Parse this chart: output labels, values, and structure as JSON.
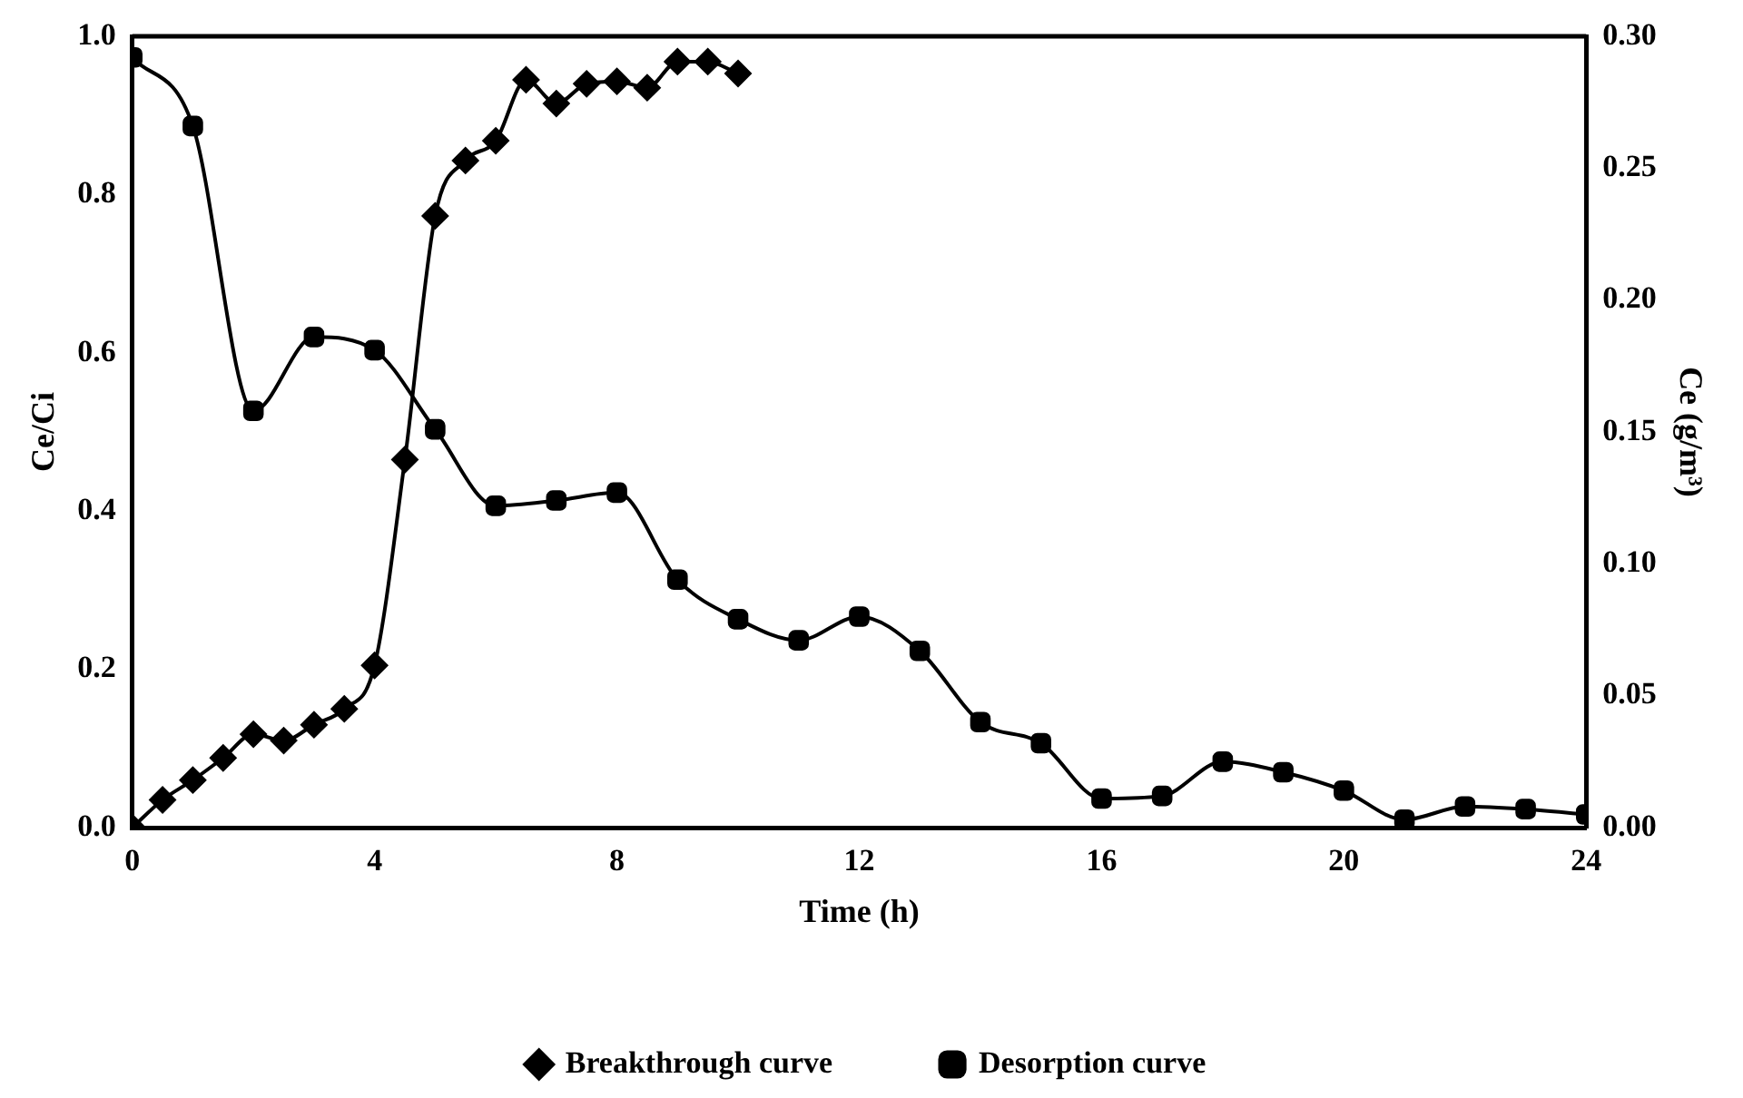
{
  "chart_data": {
    "type": "line",
    "xlabel": "Time (h)",
    "ylabel": "Ce/Ci",
    "y2label": "Ce (g/m³)",
    "xlim": [
      0,
      24
    ],
    "xticks": [
      0,
      4,
      8,
      12,
      16,
      20,
      24
    ],
    "ylim": [
      0,
      1.0
    ],
    "yticks": [
      {
        "value": 0,
        "label": "0.0"
      },
      {
        "value": 0.2,
        "label": "0.2"
      },
      {
        "value": 0.4,
        "label": "0.4"
      },
      {
        "value": 0.6,
        "label": "0.6"
      },
      {
        "value": 0.8,
        "label": "0.8"
      },
      {
        "value": 1.0,
        "label": "1.0"
      }
    ],
    "y2lim": [
      0,
      0.3
    ],
    "y2ticks": [
      {
        "value": 0,
        "label": "0.00"
      },
      {
        "value": 0.05,
        "label": "0.05"
      },
      {
        "value": 0.1,
        "label": "0.10"
      },
      {
        "value": 0.15,
        "label": "0.15"
      },
      {
        "value": 0.2,
        "label": "0.20"
      },
      {
        "value": 0.25,
        "label": "0.25"
      },
      {
        "value": 0.3,
        "label": "0.30"
      }
    ],
    "grid": false,
    "legend": "bottom",
    "line_style": "solid",
    "series": [
      {
        "name": "Breakthrough curve",
        "color": "#000000",
        "marker": "diamond",
        "x": [
          0,
          0.5,
          1,
          1.5,
          2,
          2.5,
          3,
          3.5,
          4,
          4.5,
          5,
          5.5,
          6,
          6.5,
          7,
          7.5,
          8,
          8.5,
          9,
          9.5,
          10
        ],
        "values": [
          0,
          0.035,
          0.06,
          0.088,
          0.118,
          0.11,
          0.13,
          0.15,
          0.205,
          0.465,
          0.773,
          0.843,
          0.868,
          0.945,
          0.915,
          0.94,
          0.943,
          0.935,
          0.968,
          0.968,
          0.953
        ]
      },
      {
        "name": "Desorption curve",
        "color": "#000000",
        "marker": "square",
        "axis": "y2",
        "x": [
          0,
          1,
          2,
          3,
          4,
          5,
          6,
          7,
          8,
          9,
          10,
          11,
          12,
          13,
          14,
          15,
          16,
          17,
          18,
          19,
          20,
          21,
          22,
          23,
          24
        ],
        "values": [
          0.292,
          0.266,
          0.158,
          0.186,
          0.181,
          0.151,
          0.122,
          0.124,
          0.127,
          0.094,
          0.079,
          0.071,
          0.08,
          0.067,
          0.04,
          0.032,
          0.011,
          0.012,
          0.025,
          0.021,
          0.014,
          0.003,
          0.008,
          0.007,
          0.005
        ]
      }
    ]
  }
}
